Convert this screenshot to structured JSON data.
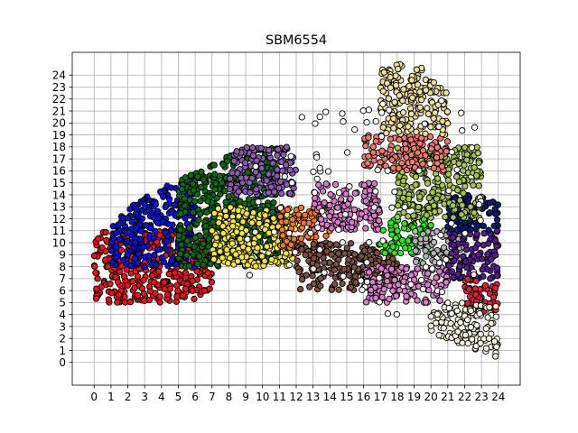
{
  "chart_data": {
    "type": "scatter",
    "title": "SBM6554",
    "xlabel": "",
    "ylabel": "",
    "xlim": [
      -1.3,
      25.3
    ],
    "ylim": [
      -1.9,
      25.9
    ],
    "x_ticks": [
      0,
      1,
      2,
      3,
      4,
      5,
      6,
      7,
      8,
      9,
      10,
      11,
      12,
      13,
      14,
      15,
      16,
      17,
      18,
      19,
      20,
      21,
      22,
      23,
      24
    ],
    "y_ticks": [
      0,
      1,
      2,
      3,
      4,
      5,
      6,
      7,
      8,
      9,
      10,
      11,
      12,
      13,
      14,
      15,
      16,
      17,
      18,
      19,
      20,
      21,
      22,
      23,
      24
    ],
    "grid": true,
    "legend": "none",
    "marker_edge_color": "#000000",
    "clusters": [
      {
        "color": "#e8141a",
        "x_range": [
          0,
          7
        ],
        "y_range": [
          5,
          11
        ]
      },
      {
        "color": "#0a12d6",
        "x_range": [
          1,
          6
        ],
        "y_range": [
          8,
          16
        ]
      },
      {
        "color": "#0f6b13",
        "x_range": [
          5,
          11
        ],
        "y_range": [
          8,
          18
        ]
      },
      {
        "color": "#8a5bb0",
        "x_range": [
          8,
          12
        ],
        "y_range": [
          14,
          18
        ]
      },
      {
        "color": "#f5e63a",
        "x_range": [
          7,
          12
        ],
        "y_range": [
          8,
          13
        ]
      },
      {
        "color": "#f07b24",
        "x_range": [
          11,
          14
        ],
        "y_range": [
          9,
          13
        ]
      },
      {
        "color": "#d77bc7",
        "x_range": [
          13,
          17
        ],
        "y_range": [
          11,
          15
        ]
      },
      {
        "color": "#7a4f44",
        "x_range": [
          12,
          18
        ],
        "y_range": [
          6,
          10
        ]
      },
      {
        "color": "#2ee81d",
        "x_range": [
          17,
          20
        ],
        "y_range": [
          9,
          12
        ]
      },
      {
        "color": "#d780c8",
        "x_range": [
          16,
          21
        ],
        "y_range": [
          5,
          8
        ]
      },
      {
        "color": "#b3b3b3",
        "x_range": [
          19,
          22
        ],
        "y_range": [
          8,
          11
        ]
      },
      {
        "color": "#541d8c",
        "x_range": [
          21,
          24
        ],
        "y_range": [
          7,
          11
        ]
      },
      {
        "color": "#0a1f6e",
        "x_range": [
          21,
          24
        ],
        "y_range": [
          11,
          14
        ]
      },
      {
        "color": "#a3c54b",
        "x_range": [
          18,
          23
        ],
        "y_range": [
          12,
          18
        ]
      },
      {
        "color": "#ef7a72",
        "x_range": [
          16,
          21
        ],
        "y_range": [
          16,
          19
        ]
      },
      {
        "color": "#eedfa1",
        "x_range": [
          17,
          21
        ],
        "y_range": [
          19,
          25
        ]
      },
      {
        "color": "#e01f3d",
        "x_range": [
          22,
          24
        ],
        "y_range": [
          4,
          7
        ]
      },
      {
        "color": "#f8f6e0",
        "x_range": [
          20,
          24
        ],
        "y_range": [
          0,
          5
        ]
      },
      {
        "color": "#ffffff",
        "x_range": [
          9,
          23
        ],
        "y_range": [
          4,
          22
        ]
      }
    ]
  }
}
